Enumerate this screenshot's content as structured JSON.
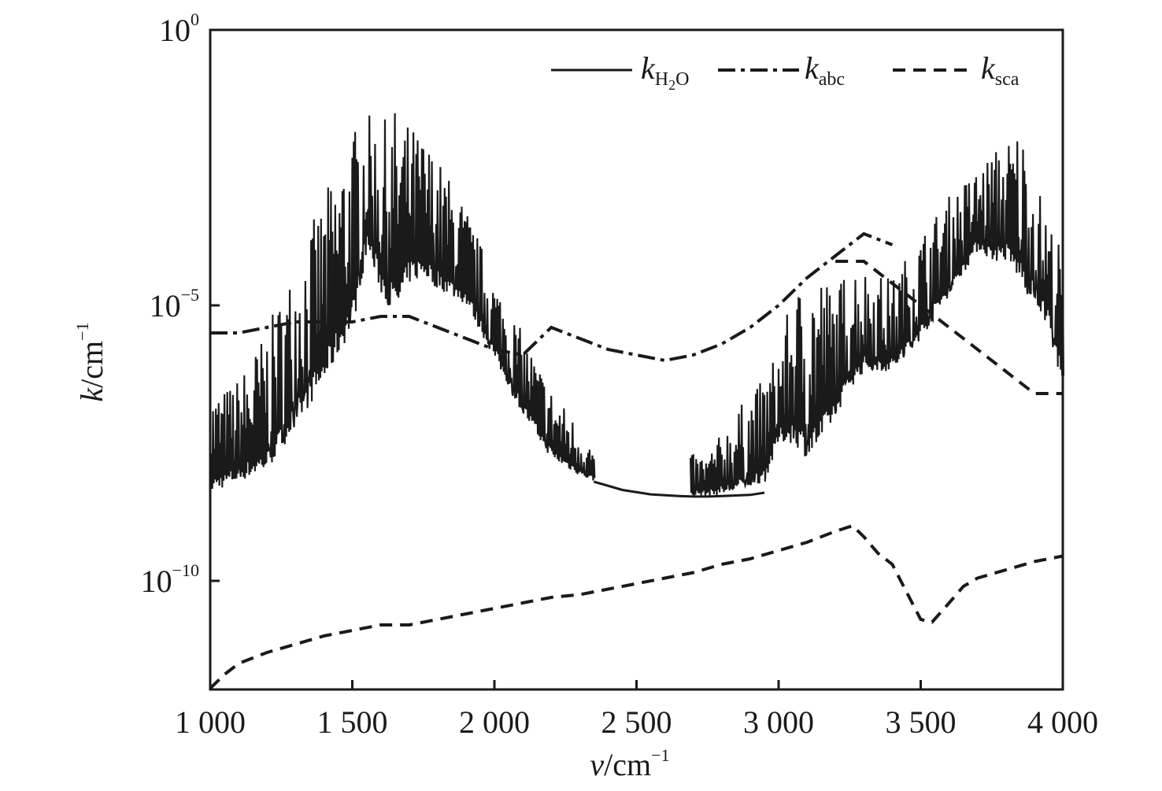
{
  "chart_data": {
    "type": "line",
    "title": "",
    "xlabel": {
      "italic": "v",
      "text": "/cm",
      "sup": "−1"
    },
    "ylabel": {
      "italic": "k",
      "text": "/cm",
      "sup": "−1"
    },
    "xlim": [
      1000,
      4000
    ],
    "ylim": [
      1e-12,
      1
    ],
    "y_scale": "log",
    "grid": false,
    "legend_placement": "top-right",
    "x_ticks": [
      {
        "value": 1000,
        "label": "1 000"
      },
      {
        "value": 1500,
        "label": "1 500"
      },
      {
        "value": 2000,
        "label": "2 000"
      },
      {
        "value": 2500,
        "label": "2 500"
      },
      {
        "value": 3000,
        "label": "3 000"
      },
      {
        "value": 3500,
        "label": "3 500"
      },
      {
        "value": 4000,
        "label": "4 000"
      }
    ],
    "y_ticks": [
      {
        "exp": -10,
        "base": "10",
        "sup": "−10"
      },
      {
        "exp": -5,
        "base": "10",
        "sup": "−5"
      },
      {
        "exp": 0,
        "base": "10",
        "sup": "0"
      }
    ],
    "series": [
      {
        "name": "kH2O",
        "legend": {
          "italic": "k",
          "sub": "H",
          "sub2": "2",
          "sub3": "O"
        },
        "style": "solid",
        "color": "#1a1a1a",
        "noisy": true,
        "envelope_x": [
          1000,
          1050,
          1100,
          1200,
          1300,
          1400,
          1500,
          1550,
          1600,
          1650,
          1700,
          1750,
          1800,
          1900,
          2000,
          2100,
          2200,
          2300,
          2350
        ],
        "envelope_log10_max": [
          -6.5,
          -6.5,
          -6.3,
          -5.4,
          -4.2,
          -3.0,
          -1.8,
          -1.5,
          -1.7,
          -1.4,
          -1.7,
          -1.9,
          -2.3,
          -3.2,
          -4.5,
          -5.5,
          -6.5,
          -7.2,
          -7.6
        ],
        "envelope_log10_min": [
          -8.4,
          -8.3,
          -8.2,
          -8.0,
          -7.2,
          -6.4,
          -5.4,
          -4.0,
          -4.8,
          -5.2,
          -4.6,
          -4.5,
          -4.7,
          -5.0,
          -6.0,
          -7.0,
          -7.8,
          -8.1,
          -8.2
        ],
        "smooth_x": [
          2350,
          2450,
          2550,
          2650,
          2700,
          2750,
          2800,
          2900,
          2950
        ],
        "smooth_log10": [
          -8.2,
          -8.35,
          -8.43,
          -8.46,
          -8.47,
          -8.47,
          -8.46,
          -8.44,
          -8.4
        ],
        "envelope2_x": [
          2690,
          2750,
          2850,
          2950,
          3000,
          3050,
          3100,
          3150,
          3200,
          3250,
          3300,
          3400,
          3500,
          3600,
          3700,
          3750,
          3800,
          3850,
          3900,
          3950,
          4000
        ],
        "envelope2_log10_max": [
          -7.7,
          -7.7,
          -6.9,
          -6.3,
          -5.7,
          -4.8,
          -4.4,
          -4.3,
          -4.8,
          -4.1,
          -4.3,
          -4.5,
          -3.7,
          -3.0,
          -2.5,
          -2.2,
          -2.0,
          -1.7,
          -2.6,
          -3.4,
          -4.0
        ],
        "envelope2_log10_min": [
          -8.47,
          -8.47,
          -8.4,
          -8.2,
          -7.5,
          -7.5,
          -7.8,
          -7.5,
          -7.0,
          -6.5,
          -6.2,
          -6.2,
          -5.6,
          -4.8,
          -4.0,
          -4.2,
          -4.2,
          -4.6,
          -5.0,
          -5.4,
          -6.6
        ]
      },
      {
        "name": "kabc",
        "legend": {
          "italic": "k",
          "sub": "abc"
        },
        "style": "dashdot",
        "color": "#1a1a1a",
        "x": [
          1000,
          1100,
          1200,
          1300,
          1400,
          1500,
          1600,
          1700,
          1800,
          1900,
          2000,
          2100,
          2200,
          2300,
          2400,
          2500,
          2600,
          2700,
          2800,
          2900,
          3000,
          3100,
          3200,
          3300,
          3400
        ],
        "log10_y": [
          -5.5,
          -5.5,
          -5.4,
          -5.3,
          -5.3,
          -5.3,
          -5.2,
          -5.2,
          -5.4,
          -5.6,
          -5.8,
          -5.9,
          -5.4,
          -5.6,
          -5.8,
          -5.9,
          -6.0,
          -5.9,
          -5.7,
          -5.4,
          -5.0,
          -4.5,
          -4.1,
          -3.7,
          -3.9
        ]
      },
      {
        "name": "ksca",
        "legend": {
          "italic": "k",
          "sub": "sca"
        },
        "style": "dashed",
        "color": "#1a1a1a",
        "x": [
          1000,
          1050,
          1100,
          1200,
          1300,
          1400,
          1500,
          1600,
          1700,
          1800,
          1900,
          2000,
          2100,
          2200,
          2300,
          2400,
          2500,
          2600,
          2700,
          2800,
          2900,
          3000,
          3100,
          3200,
          3260,
          3300,
          3350,
          3400,
          3450,
          3500,
          3540,
          3600,
          3650,
          3700,
          3800,
          3900,
          4000
        ],
        "log10_y": [
          -11.95,
          -11.7,
          -11.5,
          -11.3,
          -11.15,
          -11.0,
          -10.9,
          -10.8,
          -10.8,
          -10.7,
          -10.6,
          -10.5,
          -10.4,
          -10.3,
          -10.25,
          -10.15,
          -10.05,
          -9.95,
          -9.85,
          -9.7,
          -9.6,
          -9.45,
          -9.3,
          -9.1,
          -9.0,
          -9.2,
          -9.5,
          -9.7,
          -10.2,
          -10.7,
          -10.75,
          -10.4,
          -10.1,
          -9.95,
          -9.8,
          -9.65,
          -9.55
        ],
        "extra_x": [
          3200,
          3300,
          3400,
          3500,
          3600,
          3700,
          3800,
          3900,
          4000
        ],
        "extra_log10_y": [
          -4.2,
          -4.2,
          -4.6,
          -5.0,
          -5.4,
          -5.8,
          -6.2,
          -6.6,
          -6.6
        ]
      }
    ]
  }
}
